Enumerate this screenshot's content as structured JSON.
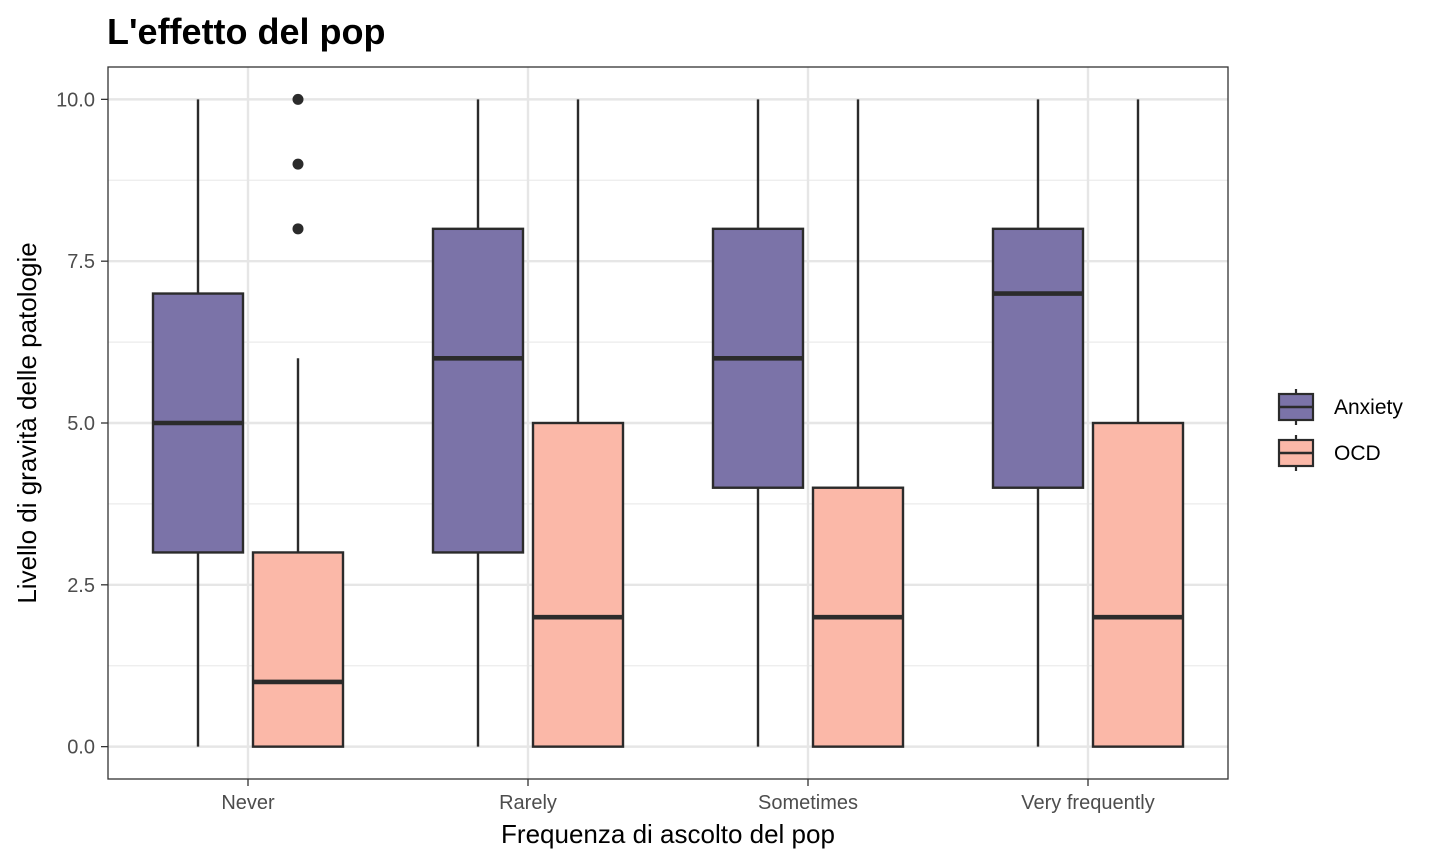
{
  "chart_data": {
    "type": "boxplot",
    "title": "L'effetto del pop",
    "xlabel": "Frequenza di ascolto del pop",
    "ylabel": "Livello di gravità delle patologie",
    "ylim": [
      -0.5,
      10.5
    ],
    "yticks": [
      0.0,
      2.5,
      5.0,
      7.5,
      10.0
    ],
    "ytick_labels": [
      "0.0",
      "2.5",
      "5.0",
      "7.5",
      "10.0"
    ],
    "grid": true,
    "legend_position": "right",
    "categories": [
      "Never",
      "Rarely",
      "Sometimes",
      "Very frequently"
    ],
    "series": [
      {
        "name": "Anxiety",
        "color": "#7b73a8",
        "boxes": [
          {
            "min": 0,
            "q1": 3,
            "median": 5,
            "q3": 7,
            "max": 10,
            "outliers": []
          },
          {
            "min": 0,
            "q1": 3,
            "median": 6,
            "q3": 8,
            "max": 10,
            "outliers": []
          },
          {
            "min": 0,
            "q1": 4,
            "median": 6,
            "q3": 8,
            "max": 10,
            "outliers": []
          },
          {
            "min": 0,
            "q1": 4,
            "median": 7,
            "q3": 8,
            "max": 10,
            "outliers": []
          }
        ]
      },
      {
        "name": "OCD",
        "color": "#fbb8a8",
        "boxes": [
          {
            "min": 0,
            "q1": 0,
            "median": 1,
            "q3": 3,
            "max": 6,
            "outliers": [
              8,
              9,
              10
            ]
          },
          {
            "min": 0,
            "q1": 0,
            "median": 2,
            "q3": 5,
            "max": 10,
            "outliers": []
          },
          {
            "min": 0,
            "q1": 0,
            "median": 2,
            "q3": 4,
            "max": 10,
            "outliers": []
          },
          {
            "min": 0,
            "q1": 0,
            "median": 2,
            "q3": 5,
            "max": 10,
            "outliers": []
          }
        ]
      }
    ]
  }
}
